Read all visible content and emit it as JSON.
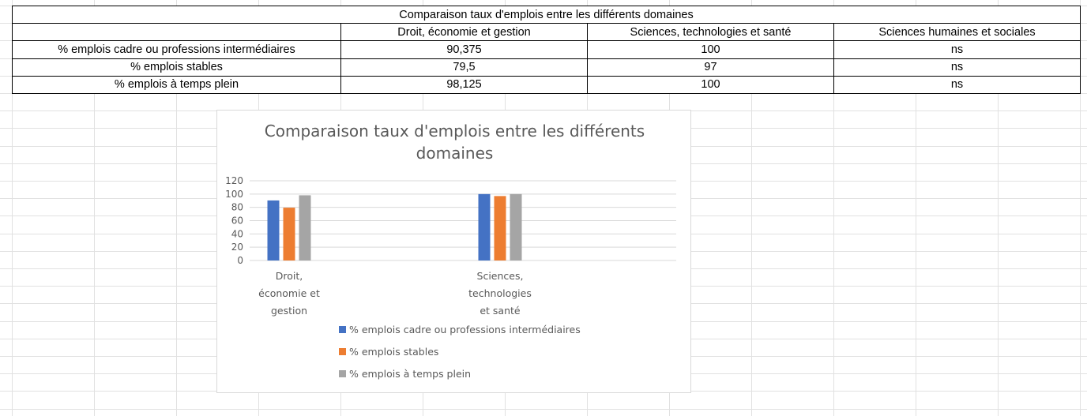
{
  "table": {
    "title": "Comparaison taux d'emplois entre les différents domaines",
    "headers": [
      "",
      "Droit, économie et gestion",
      "Sciences, technologies et santé",
      "Sciences humaines et sociales"
    ],
    "rows": [
      [
        "% emplois cadre ou professions intermédiaires",
        "90,375",
        "100",
        "ns"
      ],
      [
        "% emplois stables",
        "79,5",
        "97",
        "ns"
      ],
      [
        "% emplois à temps plein",
        "98,125",
        "100",
        "ns"
      ]
    ]
  },
  "chart_data": {
    "type": "bar",
    "title_lines": [
      "Comparaison taux d'emplois entre les différents",
      "domaines"
    ],
    "categories": [
      [
        "Droit,",
        "économie et",
        "gestion"
      ],
      [
        "Sciences,",
        "technologies",
        "et santé"
      ]
    ],
    "series": [
      {
        "name": "% emplois cadre ou professions intermédiaires",
        "values": [
          90.375,
          100
        ],
        "color": "#4472c4"
      },
      {
        "name": "% emplois stables",
        "values": [
          79.5,
          97
        ],
        "color": "#ed7d31"
      },
      {
        "name": "% emplois à temps plein",
        "values": [
          98.125,
          100
        ],
        "color": "#a5a5a5"
      }
    ],
    "ylim": [
      0,
      120
    ],
    "yticks": [
      "0",
      "20",
      "40",
      "60",
      "80",
      "100",
      "120"
    ],
    "grid": true,
    "legend_position": "bottom"
  }
}
